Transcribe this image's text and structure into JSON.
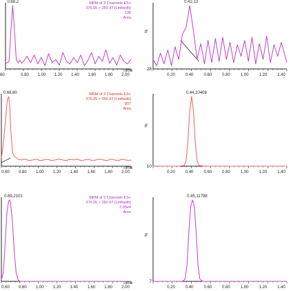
{
  "chart_data": [
    {
      "type": "line",
      "panel": "top-left",
      "header_lines": [
        "MRM of 3 Channels ES+",
        "376.05 > 250.97 (Linifanib)",
        "138",
        "Area"
      ],
      "header_color": "#b030c0",
      "series_color": "#c040c8",
      "peak_label": "0.68,2",
      "xlabel": "Time",
      "xlim": [
        0.6,
        2.0
      ],
      "x_ticks": [
        "0.80",
        "1.00",
        "1.20",
        "1.40",
        "1.60",
        "1.80",
        "2.00"
      ],
      "x_first_tick": "60",
      "ylim": [
        0,
        100
      ],
      "x": [
        0.6,
        0.64,
        0.66,
        0.68,
        0.7,
        0.72,
        0.74,
        0.76,
        0.78,
        0.8,
        0.84,
        0.88,
        0.92,
        0.96,
        1.0,
        1.04,
        1.08,
        1.12,
        1.16,
        1.2,
        1.24,
        1.28,
        1.32,
        1.36,
        1.4,
        1.44,
        1.48,
        1.52,
        1.56,
        1.6,
        1.64,
        1.68,
        1.72,
        1.76,
        1.8,
        1.84,
        1.88,
        1.92,
        1.96,
        2.0
      ],
      "y": [
        8,
        12,
        60,
        100,
        60,
        15,
        10,
        14,
        9,
        12,
        20,
        10,
        22,
        8,
        18,
        5,
        24,
        10,
        15,
        6,
        26,
        12,
        8,
        18,
        10,
        22,
        5,
        14,
        26,
        8,
        20,
        12,
        30,
        9,
        18,
        6,
        22,
        12,
        8,
        15
      ]
    },
    {
      "type": "line",
      "panel": "top-right",
      "header_lines": [],
      "series_color": "#c040c8",
      "peak_label": "0.42,13",
      "ylabel": "%",
      "y_bottom_label": "28",
      "xlabel": "",
      "xlim": [
        0.02,
        1.48
      ],
      "x_ticks": [
        "0.20",
        "0.40",
        "0.60",
        "0.80",
        "1.00",
        "1.20",
        "1.40"
      ],
      "ylim": [
        0,
        100
      ],
      "x": [
        0.02,
        0.06,
        0.1,
        0.14,
        0.18,
        0.22,
        0.26,
        0.3,
        0.34,
        0.38,
        0.42,
        0.46,
        0.5,
        0.54,
        0.58,
        0.62,
        0.66,
        0.7,
        0.74,
        0.78,
        0.82,
        0.86,
        0.9,
        0.94,
        0.98,
        1.02,
        1.06,
        1.1,
        1.14,
        1.18,
        1.22,
        1.26,
        1.3,
        1.34,
        1.38,
        1.42,
        1.48
      ],
      "y": [
        15,
        5,
        25,
        8,
        30,
        5,
        35,
        15,
        55,
        65,
        100,
        60,
        15,
        40,
        8,
        45,
        10,
        48,
        12,
        50,
        15,
        42,
        10,
        38,
        20,
        45,
        12,
        50,
        8,
        40,
        15,
        52,
        10,
        38,
        20,
        42,
        10
      ],
      "baseline_segment": {
        "color": "#404040",
        "x": [
          0.32,
          0.52
        ],
        "y": [
          45,
          12
        ]
      }
    },
    {
      "type": "line",
      "panel": "middle-left",
      "header_lines": [
        "MRM of 3 Channels ES+",
        "376.05 > 250.97 (Linifanib)",
        "807",
        "Area"
      ],
      "header_color": "#e03030",
      "series_color": "#f06060",
      "peak_label": "0.68,60",
      "xlabel": "Time",
      "xlim": [
        0.6,
        2.0
      ],
      "x_ticks": [
        "0.60",
        "0.80",
        "1.00",
        "1.20",
        "1.40",
        "1.60",
        "1.80",
        "2.00"
      ],
      "ylim": [
        0,
        100
      ],
      "x": [
        0.6,
        0.62,
        0.64,
        0.66,
        0.67,
        0.68,
        0.69,
        0.7,
        0.72,
        0.74,
        0.78,
        0.82,
        0.86,
        0.9,
        0.94,
        0.98,
        1.02,
        1.06,
        1.1,
        1.14,
        1.18,
        1.22,
        1.26,
        1.3,
        1.34,
        1.38,
        1.42,
        1.46,
        1.5,
        1.54,
        1.58,
        1.62,
        1.66,
        1.7,
        1.74,
        1.78,
        1.82,
        1.86,
        1.9,
        1.94,
        1.98,
        2.0
      ],
      "y": [
        12,
        30,
        60,
        90,
        98,
        100,
        88,
        55,
        20,
        14,
        10,
        9,
        10,
        8,
        9,
        10,
        8,
        9,
        10,
        8,
        9,
        10,
        9,
        8,
        10,
        9,
        10,
        8,
        9,
        10,
        8,
        9,
        10,
        9,
        8,
        10,
        9,
        8,
        10,
        9,
        8,
        9
      ],
      "baseline_segment": {
        "color": "#404040",
        "x": [
          0.6,
          0.7
        ],
        "y": [
          5,
          12
        ]
      }
    },
    {
      "type": "line",
      "panel": "middle-right",
      "header_lines": [],
      "series_color": "#f06060",
      "peak_label": "0.44,10408",
      "ylabel": "%",
      "y_bottom_label": "10",
      "xlabel": "",
      "xlim": [
        0.02,
        1.48
      ],
      "x_ticks": [
        "0.20",
        "0.40",
        "0.60",
        "0.80",
        "1.00",
        "1.20",
        "1.40"
      ],
      "ylim": [
        0,
        100
      ],
      "x": [
        0.02,
        0.3,
        0.36,
        0.38,
        0.4,
        0.42,
        0.44,
        0.46,
        0.48,
        0.5,
        0.52,
        0.58,
        1.48
      ],
      "y": [
        0,
        0,
        1,
        8,
        35,
        80,
        100,
        80,
        35,
        8,
        1,
        0,
        0
      ]
    },
    {
      "type": "line",
      "panel": "bottom-left",
      "header_lines": [
        "MRM of 3 Channels ES+",
        "376.05 > 250.97 (Linifanib)",
        "2.05e4",
        "Area"
      ],
      "header_color": "#b030c0",
      "series_color": "#c040c8",
      "peak_label": "0.69,2101",
      "xlabel": "Time",
      "xlim": [
        0.6,
        2.0
      ],
      "x_ticks": [
        "0.60",
        "0.80",
        "1.00",
        "1.20",
        "1.40",
        "1.60",
        "1.80",
        "2.00"
      ],
      "ylim": [
        0,
        100
      ],
      "x": [
        0.6,
        0.62,
        0.64,
        0.66,
        0.68,
        0.69,
        0.7,
        0.72,
        0.74,
        0.76,
        0.78,
        0.8,
        2.0
      ],
      "y": [
        2,
        10,
        45,
        85,
        99,
        100,
        96,
        72,
        35,
        10,
        2,
        0,
        0
      ]
    },
    {
      "type": "line",
      "panel": "bottom-right",
      "header_lines": [],
      "series_color": "#c040c8",
      "peak_label": "0.45,11798",
      "ylabel": "%",
      "y_bottom_label": "7",
      "xlabel": "",
      "xlim": [
        0.02,
        1.48
      ],
      "x_ticks": [
        "0.20",
        "0.40",
        "0.60",
        "0.80",
        "1.00",
        "1.20",
        "1.40"
      ],
      "ylim": [
        0,
        100
      ],
      "x": [
        0.02,
        0.34,
        0.37,
        0.39,
        0.41,
        0.43,
        0.45,
        0.47,
        0.49,
        0.51,
        0.53,
        0.56,
        1.48
      ],
      "y": [
        0,
        0,
        3,
        20,
        60,
        92,
        100,
        92,
        60,
        20,
        3,
        0,
        0
      ]
    }
  ]
}
